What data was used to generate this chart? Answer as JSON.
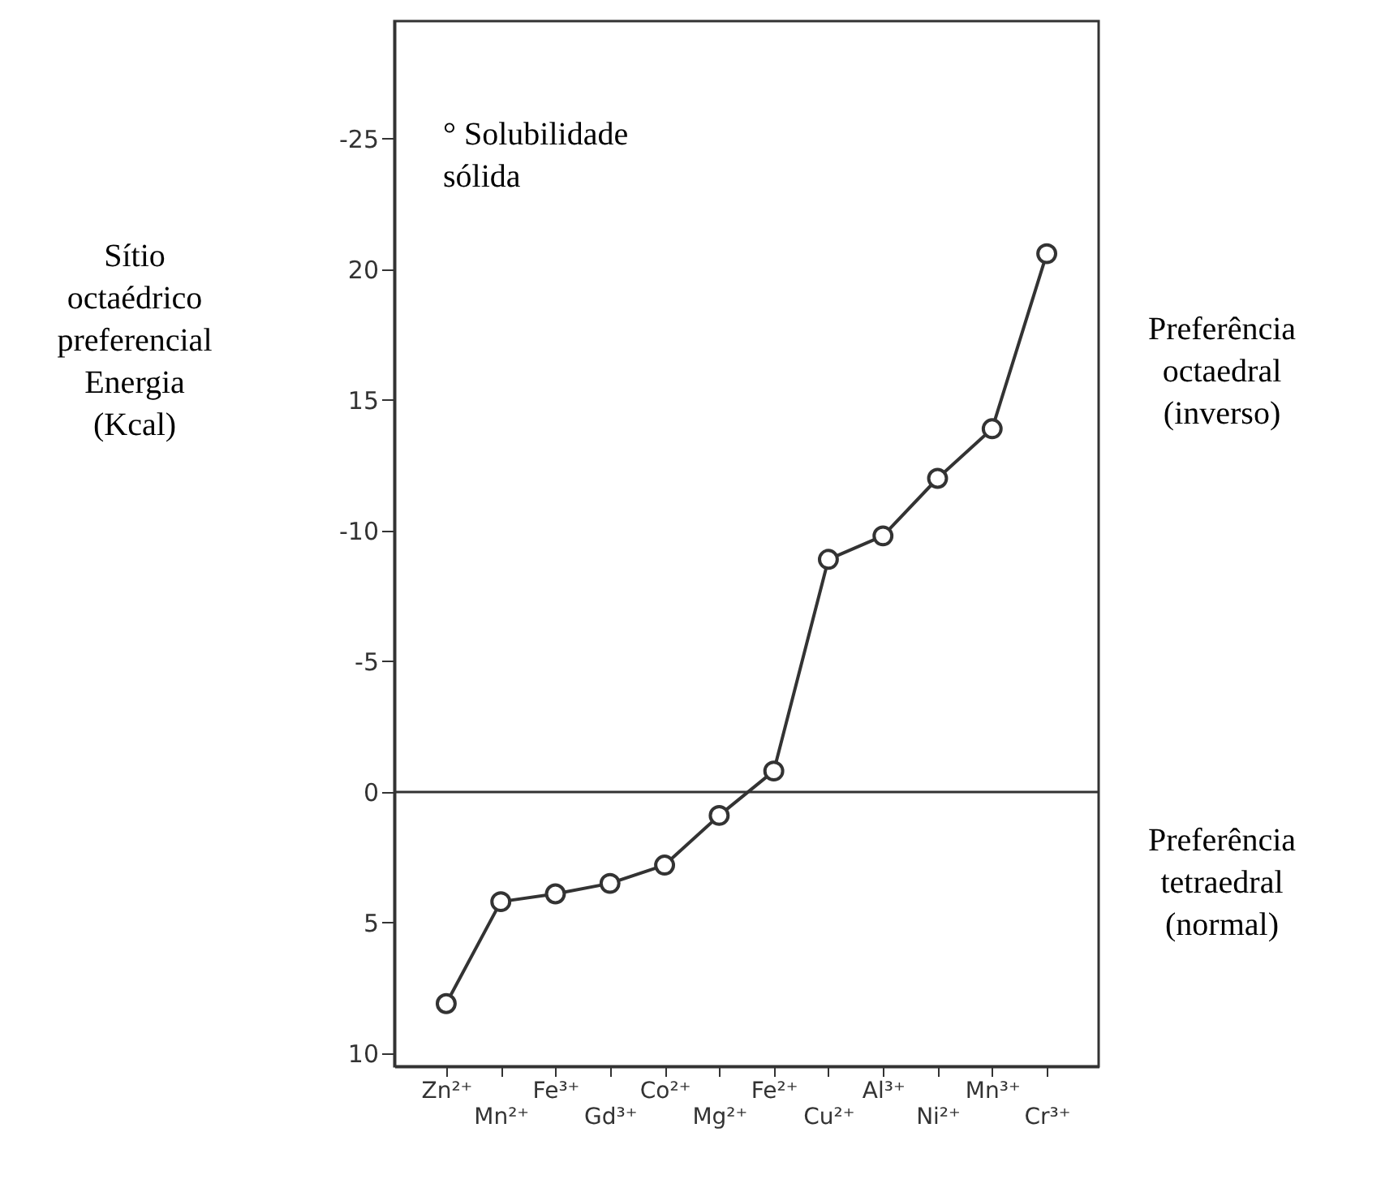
{
  "chart_data": {
    "type": "line",
    "ylabel": "Sítio\noctaédrico\npreferencial\nEnergia\n(Kcal)",
    "categories": [
      "Zn²⁺",
      "Mn²⁺",
      "Fe³⁺",
      "Gd³⁺",
      "Co²⁺",
      "Mg²⁺",
      "Fe²⁺",
      "Cu²⁺",
      "Al³⁺",
      "Ni²⁺",
      "Mn³⁺",
      "Cr³⁺"
    ],
    "series": [
      {
        "color": "#333333",
        "values": [
          8.1,
          4.2,
          3.9,
          3.5,
          2.8,
          0.9,
          -0.8,
          -8.9,
          -9.8,
          -12.0,
          -13.9,
          -20.6
        ]
      }
    ],
    "ylim": [
      10.5,
      -29.5
    ],
    "yticks": [
      {
        "value": -25,
        "label": "-25"
      },
      {
        "value": -20,
        "label": "20"
      },
      {
        "value": -15,
        "label": "15"
      },
      {
        "value": -10,
        "label": "-10"
      },
      {
        "value": -5,
        "label": "-5"
      },
      0,
      5,
      10
    ],
    "marker": "circle",
    "ref_lines": [
      {
        "axis": "y",
        "value": 0,
        "color": "#333333"
      }
    ],
    "annotations": [
      "° Solubilidade\nsólida",
      "Preferência\noctaedral\n(inverso)",
      "Preferência\ntetraedral\n(normal)"
    ]
  }
}
